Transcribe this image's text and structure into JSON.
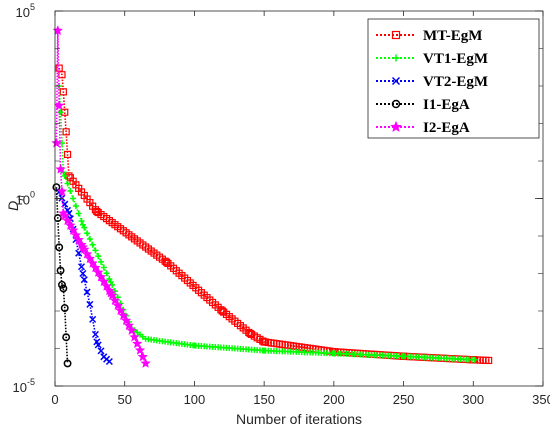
{
  "chart_data": {
    "type": "line",
    "title": "",
    "xlabel": "Number of iterations",
    "ylabel": "D",
    "ylabel_subscript": "n",
    "xlim": [
      0,
      350
    ],
    "ylim_log10": [
      -5,
      5
    ],
    "y_scale": "log",
    "x_ticks": [
      "0",
      "50",
      "100",
      "150",
      "200",
      "250",
      "300",
      "350"
    ],
    "y_ticks": [
      {
        "base": "10",
        "exp": "-5"
      },
      {
        "base": "10",
        "exp": "0"
      },
      {
        "base": "10",
        "exp": "5"
      }
    ],
    "grid": false,
    "legend_position": "top-right",
    "series": [
      {
        "name": "MT-EgM",
        "color": "#ff0000",
        "marker": "square",
        "line": "dotted",
        "x_end": 311,
        "points": [
          [
            3,
            3000
          ],
          [
            5,
            2000
          ],
          [
            6,
            700
          ],
          [
            7,
            200
          ],
          [
            8,
            60
          ],
          [
            9,
            15
          ],
          [
            10,
            4
          ],
          [
            30,
            0.45
          ],
          [
            80,
            0.02
          ],
          [
            120,
            0.001
          ],
          [
            140,
            0.00025
          ],
          [
            150,
            0.00015
          ],
          [
            200,
            8.2e-05
          ],
          [
            250,
            6.2e-05
          ],
          [
            300,
            5e-05
          ],
          [
            311,
            4.8e-05
          ]
        ]
      },
      {
        "name": "VT1-EgM",
        "color": "#00ff00",
        "marker": "plus",
        "line": "dotted",
        "x_end": 301,
        "points": [
          [
            3,
            1000
          ],
          [
            4,
            200
          ],
          [
            5,
            30
          ],
          [
            6,
            5
          ],
          [
            20,
            0.2
          ],
          [
            40,
            0.006
          ],
          [
            55,
            0.00035
          ],
          [
            65,
            0.00018
          ],
          [
            100,
            0.00012
          ],
          [
            150,
            8.8e-05
          ],
          [
            200,
            7.4e-05
          ],
          [
            250,
            6.2e-05
          ],
          [
            301,
            5e-05
          ]
        ]
      },
      {
        "name": "VT2-EgM",
        "color": "#0000ff",
        "marker": "x",
        "line": "dotted",
        "x_end": 39,
        "points": [
          [
            3,
            1.5
          ],
          [
            10,
            0.4
          ],
          [
            15,
            0.08
          ],
          [
            20,
            0.01
          ],
          [
            25,
            0.0015
          ],
          [
            30,
            0.00015
          ],
          [
            35,
            6e-05
          ],
          [
            39,
            4.5e-05
          ]
        ]
      },
      {
        "name": "I1-EgA",
        "color": "#000000",
        "marker": "circle",
        "line": "dotted",
        "x_end": 9,
        "points": [
          [
            1,
            2
          ],
          [
            2,
            0.3
          ],
          [
            3,
            0.05
          ],
          [
            4,
            0.012
          ],
          [
            5,
            0.005
          ],
          [
            6,
            0.004
          ],
          [
            7,
            0.0012
          ],
          [
            8,
            0.0002
          ],
          [
            9,
            4e-05
          ]
        ]
      },
      {
        "name": "I2-EgA",
        "color": "#ff00ff",
        "marker": "star",
        "line": "dotted",
        "x_end": 65,
        "points": [
          [
            1,
            30
          ],
          [
            2,
            30000
          ],
          [
            3,
            300
          ],
          [
            4,
            6
          ],
          [
            6,
            0.4
          ],
          [
            20,
            0.05
          ],
          [
            40,
            0.003
          ],
          [
            55,
            0.0003
          ],
          [
            65,
            4e-05
          ]
        ]
      }
    ]
  }
}
